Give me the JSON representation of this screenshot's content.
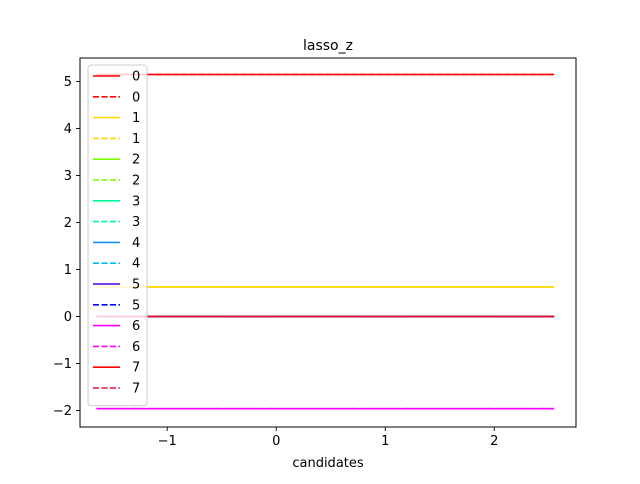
{
  "chart_data": {
    "type": "line",
    "title": "lasso_z",
    "xlabel": "candidates",
    "ylabel": "",
    "xlim": [
      -1.8,
      2.75
    ],
    "ylim": [
      -2.35,
      5.5
    ],
    "xticks": [
      -1,
      0,
      1,
      2
    ],
    "yticks": [
      -2,
      -1,
      0,
      1,
      2,
      3,
      4,
      5
    ],
    "grid": false,
    "legend_position": "upper-left",
    "series": [
      {
        "name": "0",
        "color": "#ff0000",
        "dash": "solid",
        "x": [
          -1.65,
          2.55
        ],
        "y": [
          5.15,
          5.15
        ]
      },
      {
        "name": "0",
        "color": "#ff0000",
        "dash": "dashed",
        "x": [
          -1.65,
          2.55
        ],
        "y": [
          5.15,
          5.15
        ]
      },
      {
        "name": "1",
        "color": "#ffd700",
        "dash": "solid",
        "x": [
          -1.65,
          2.55
        ],
        "y": [
          0.63,
          0.63
        ]
      },
      {
        "name": "1",
        "color": "#ffd700",
        "dash": "dashed",
        "x": [
          -1.65,
          2.55
        ],
        "y": [
          0.63,
          0.63
        ]
      },
      {
        "name": "2",
        "color": "#7cfc00",
        "dash": "solid",
        "x": [
          -1.65,
          2.55
        ],
        "y": [
          0.0,
          0.0
        ]
      },
      {
        "name": "2",
        "color": "#7cfc00",
        "dash": "dashed",
        "x": [
          -1.65,
          2.55
        ],
        "y": [
          0.0,
          0.0
        ]
      },
      {
        "name": "3",
        "color": "#00fa9a",
        "dash": "solid",
        "x": [
          -1.65,
          2.55
        ],
        "y": [
          0.0,
          0.0
        ]
      },
      {
        "name": "3",
        "color": "#00fa9a",
        "dash": "dashed",
        "x": [
          -1.65,
          2.55
        ],
        "y": [
          0.0,
          0.0
        ]
      },
      {
        "name": "4",
        "color": "#1e90ff",
        "dash": "solid",
        "x": [
          -1.65,
          2.55
        ],
        "y": [
          0.0,
          0.0
        ]
      },
      {
        "name": "4",
        "color": "#00bfff",
        "dash": "dashed",
        "x": [
          -1.65,
          2.55
        ],
        "y": [
          0.0,
          0.0
        ]
      },
      {
        "name": "5",
        "color": "#4b00d8",
        "dash": "solid",
        "x": [
          -1.65,
          2.55
        ],
        "y": [
          0.0,
          0.0
        ]
      },
      {
        "name": "5",
        "color": "#0000ff",
        "dash": "dashed",
        "x": [
          -1.65,
          2.55
        ],
        "y": [
          0.0,
          0.0
        ]
      },
      {
        "name": "6",
        "color": "#ff00ff",
        "dash": "solid",
        "x": [
          -1.65,
          2.55
        ],
        "y": [
          -1.96,
          -1.96
        ]
      },
      {
        "name": "6",
        "color": "#ff00ff",
        "dash": "dashed",
        "x": [
          -1.65,
          2.55
        ],
        "y": [
          -1.96,
          -1.96
        ]
      },
      {
        "name": "7",
        "color": "#ff0000",
        "dash": "solid",
        "x": [
          -1.65,
          2.55
        ],
        "y": [
          0.0,
          0.0
        ]
      },
      {
        "name": "7",
        "color": "#dc143c",
        "dash": "dashed",
        "x": [
          -1.65,
          2.55
        ],
        "y": [
          0.0,
          0.0
        ]
      }
    ]
  }
}
